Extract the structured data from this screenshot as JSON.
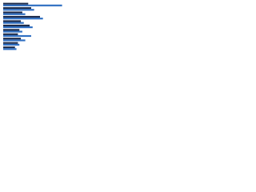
{
  "chart_data": {
    "type": "hbar",
    "categories": [
      null,
      null,
      null,
      null,
      null,
      null,
      null,
      null,
      null,
      null,
      null
    ],
    "series": [
      {
        "color": "#1b2a4a",
        "values": [
          34,
          38,
          26,
          50,
          24,
          36,
          22,
          20,
          24,
          20,
          16
        ]
      },
      {
        "color": "#2f6fc2",
        "values": [
          80,
          42,
          30,
          54,
          28,
          40,
          26,
          38,
          30,
          22,
          18
        ]
      }
    ],
    "xlim": [
      0,
      100
    ]
  }
}
